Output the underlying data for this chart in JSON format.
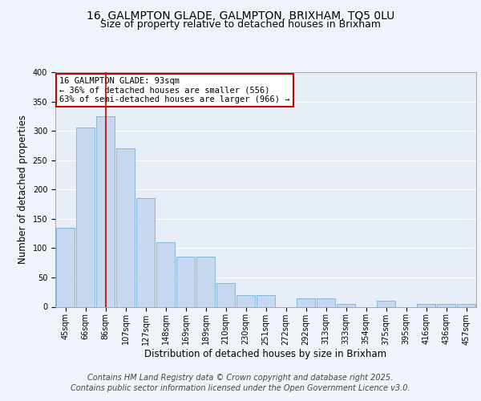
{
  "title_line1": "16, GALMPTON GLADE, GALMPTON, BRIXHAM, TQ5 0LU",
  "title_line2": "Size of property relative to detached houses in Brixham",
  "xlabel": "Distribution of detached houses by size in Brixham",
  "ylabel": "Number of detached properties",
  "bar_labels": [
    "45sqm",
    "66sqm",
    "86sqm",
    "107sqm",
    "127sqm",
    "148sqm",
    "169sqm",
    "189sqm",
    "210sqm",
    "230sqm",
    "251sqm",
    "272sqm",
    "292sqm",
    "313sqm",
    "333sqm",
    "354sqm",
    "375sqm",
    "395sqm",
    "416sqm",
    "436sqm",
    "457sqm"
  ],
  "bar_values": [
    135,
    305,
    325,
    270,
    185,
    110,
    85,
    85,
    40,
    20,
    20,
    0,
    15,
    15,
    5,
    0,
    10,
    0,
    5,
    5,
    5
  ],
  "bar_color": "#c5d8f0",
  "bar_edge_color": "#7aafd4",
  "vline_index": 2,
  "vline_color": "#cc0000",
  "annotation_text": "16 GALMPTON GLADE: 93sqm\n← 36% of detached houses are smaller (556)\n63% of semi-detached houses are larger (966) →",
  "annotation_box_color": "#ffffff",
  "annotation_box_edge_color": "#cc0000",
  "footer_line1": "Contains HM Land Registry data © Crown copyright and database right 2025.",
  "footer_line2": "Contains public sector information licensed under the Open Government Licence v3.0.",
  "ylim": [
    0,
    400
  ],
  "plot_bg_color": "#e8eef8",
  "fig_bg_color": "#f0f4fa",
  "grid_color": "#ffffff",
  "title_fontsize": 10,
  "subtitle_fontsize": 9,
  "axis_label_fontsize": 8.5,
  "tick_fontsize": 7,
  "footer_fontsize": 7,
  "ann_fontsize": 7.5
}
